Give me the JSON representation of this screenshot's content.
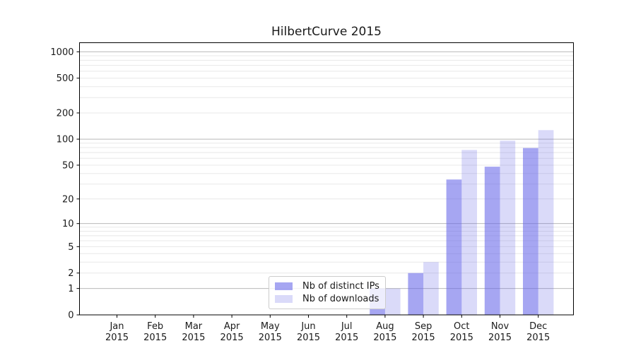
{
  "title": "HilbertCurve 2015",
  "chart_data": {
    "type": "bar",
    "title": "HilbertCurve 2015",
    "months": [
      "Jan",
      "Feb",
      "Mar",
      "Apr",
      "May",
      "Jun",
      "Jul",
      "Aug",
      "Sep",
      "Oct",
      "Nov",
      "Dec"
    ],
    "year": "2015",
    "series": [
      {
        "name": "Nb of distinct IPs",
        "color": "#6666e8",
        "alpha": 0.58,
        "values": [
          0,
          0,
          0,
          0,
          0,
          0,
          0,
          1,
          2,
          34,
          48,
          79
        ]
      },
      {
        "name": "Nb of downloads",
        "color": "#6666e8",
        "alpha": 0.24,
        "values": [
          0,
          0,
          0,
          0,
          0,
          0,
          0,
          1,
          3,
          75,
          96,
          127
        ]
      }
    ],
    "yscale": "log1p",
    "ylim": [
      0,
      1270
    ],
    "ytick_values": [
      0,
      1,
      2,
      5,
      10,
      20,
      50,
      100,
      200,
      500,
      1000
    ],
    "grid": "both",
    "legend_position": "lower-center",
    "colors": {
      "grid_minor": "#e8e8e8",
      "grid_major": "#b9b9b9",
      "axis": "#000000",
      "text": "#1a1a1a",
      "legend_border": "#cccccc",
      "legend_bg": "rgba(255,255,255,0.8)"
    }
  }
}
